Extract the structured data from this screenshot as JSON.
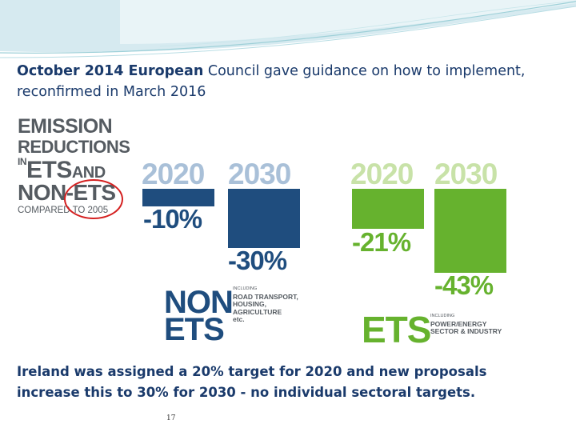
{
  "title": {
    "bold": "October 2014 European",
    "rest": " Council gave guidance on how to implement,",
    "line2": "reconfirmed in March 2016"
  },
  "graphic": {
    "label": {
      "line1": "EMISSION",
      "line2": "REDUCTIONS",
      "line3_in": "IN",
      "line3_ets": "ETS",
      "line3_and": "AND",
      "line4": "NON-ETS",
      "line5": "COMPARED TO 2005"
    },
    "non_ets": {
      "year_2020": "2020",
      "year_2030": "2030",
      "pct_2020": "-10%",
      "pct_2030": "-30%",
      "value_2020": -10,
      "value_2030": -30,
      "name_line1": "NON",
      "name_line2": "ETS",
      "including": "INCLUDING",
      "sectors": [
        "ROAD TRANSPORT,",
        "HOUSING,",
        "AGRICULTURE",
        "etc."
      ],
      "color": "#1f4d7e",
      "year_color": "#a9c0d8"
    },
    "ets": {
      "year_2020": "2020",
      "year_2030": "2030",
      "pct_2020": "-21%",
      "pct_2030": "-43%",
      "value_2020": -21,
      "value_2030": -43,
      "name": "ETS",
      "including": "INCLUDING",
      "sectors": [
        "POWER/ENERGY",
        "SECTOR & INDUSTRY"
      ],
      "color": "#66b22e",
      "year_color": "#c8e2a8"
    }
  },
  "bottom_text": {
    "line1": "Ireland was assigned a 20% target for 2020 and new proposals",
    "line2": "increase this to 30% for 2030 - no individual sectoral targets."
  },
  "page_number": "17"
}
